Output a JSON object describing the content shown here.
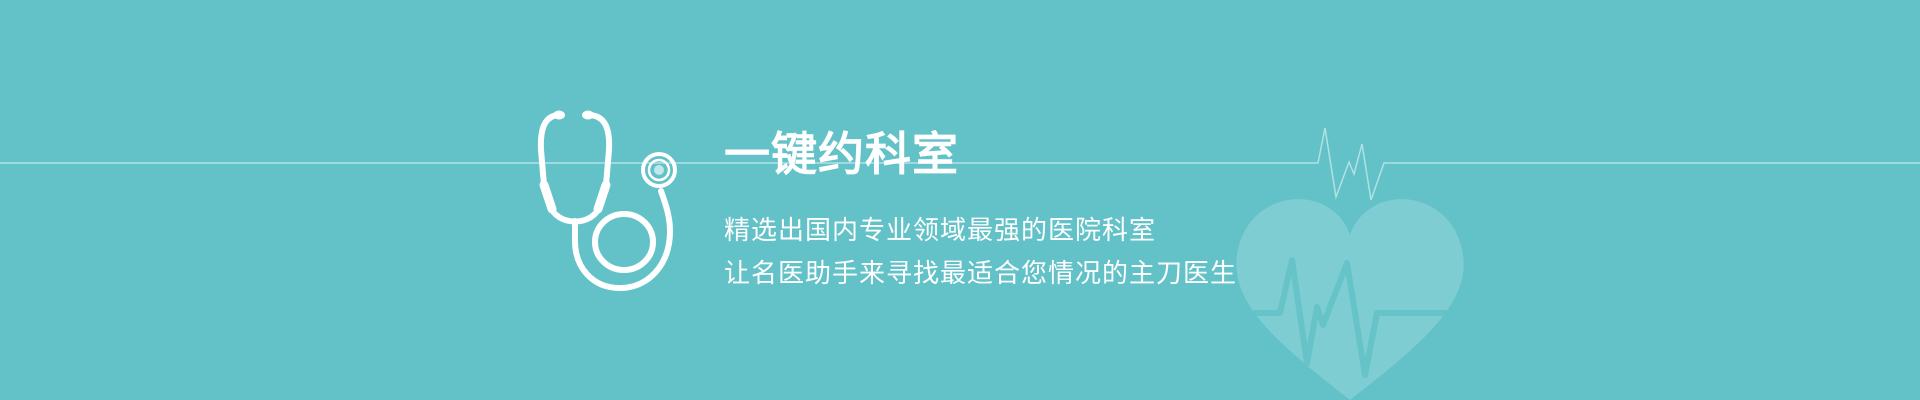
{
  "banner": {
    "title": "一键约科室",
    "lines": [
      "精选出国内专业领域最强的医院科室",
      "让名医助手来寻找最适合您情况的主刀医生"
    ]
  },
  "icons": {
    "stethoscope": "stethoscope-icon",
    "heart": "heart-icon",
    "pulse": "heartbeat-line"
  },
  "colors": {
    "background": "#62c2c8",
    "foreground": "#ffffff"
  }
}
